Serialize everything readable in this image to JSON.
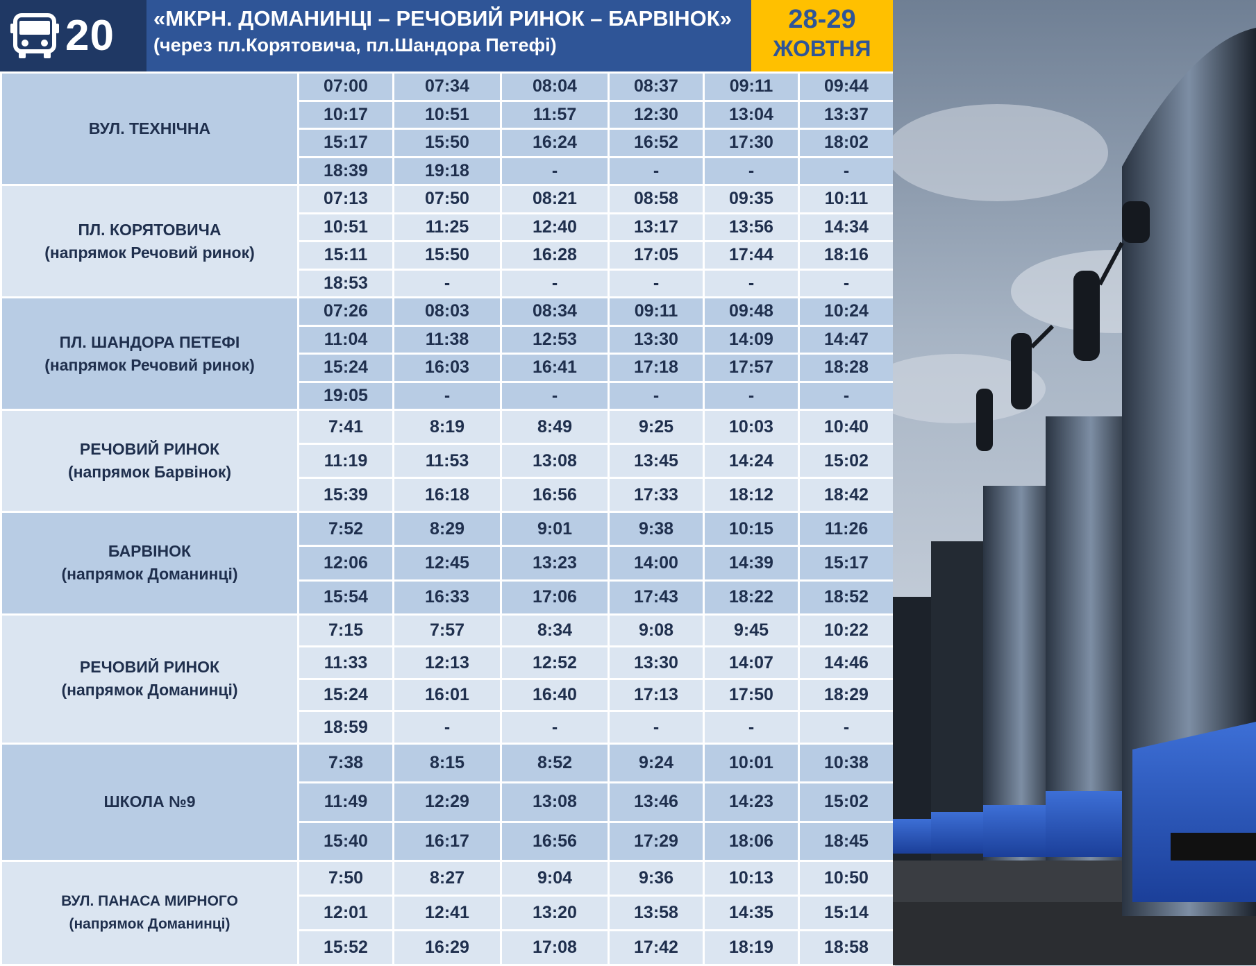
{
  "header": {
    "route_number": "20",
    "title": "«МКРН. ДОМАНИНЦІ – РЕЧОВИЙ РИНОК – БАРВІНОК»",
    "subtitle": "(через пл.Корятовича, пл.Шандора Петефі)",
    "date_days": "28-29",
    "date_month": "ЖОВТНЯ",
    "icon": "bus-icon"
  },
  "stops": [
    {
      "name": "ВУЛ. ТЕХНІЧНА",
      "direction": "",
      "rows": [
        [
          "07:00",
          "07:34",
          "08:04",
          "08:37",
          "09:11",
          "09:44"
        ],
        [
          "10:17",
          "10:51",
          "11:57",
          "12:30",
          "13:04",
          "13:37"
        ],
        [
          "15:17",
          "15:50",
          "16:24",
          "16:52",
          "17:30",
          "18:02"
        ],
        [
          "18:39",
          "19:18",
          "-",
          "-",
          "-",
          "-"
        ]
      ]
    },
    {
      "name": "ПЛ. КОРЯТОВИЧА",
      "direction": "(напрямок Речовий ринок)",
      "rows": [
        [
          "07:13",
          "07:50",
          "08:21",
          "08:58",
          "09:35",
          "10:11"
        ],
        [
          "10:51",
          "11:25",
          "12:40",
          "13:17",
          "13:56",
          "14:34"
        ],
        [
          "15:11",
          "15:50",
          "16:28",
          "17:05",
          "17:44",
          "18:16"
        ],
        [
          "18:53",
          "-",
          "-",
          "-",
          "-",
          "-"
        ]
      ]
    },
    {
      "name": "ПЛ. ШАНДОРА ПЕТЕФІ",
      "direction": "(напрямок Речовий ринок)",
      "rows": [
        [
          "07:26",
          "08:03",
          "08:34",
          "09:11",
          "09:48",
          "10:24"
        ],
        [
          "11:04",
          "11:38",
          "12:53",
          "13:30",
          "14:09",
          "14:47"
        ],
        [
          "15:24",
          "16:03",
          "16:41",
          "17:18",
          "17:57",
          "18:28"
        ],
        [
          "19:05",
          "-",
          "-",
          "-",
          "-",
          "-"
        ]
      ]
    },
    {
      "name": "РЕЧОВИЙ РИНОК",
      "direction": "(напрямок Барвінок)",
      "rows": [
        [
          "7:41",
          "8:19",
          "8:49",
          "9:25",
          "10:03",
          "10:40"
        ],
        [
          "11:19",
          "11:53",
          "13:08",
          "13:45",
          "14:24",
          "15:02"
        ],
        [
          "15:39",
          "16:18",
          "16:56",
          "17:33",
          "18:12",
          "18:42"
        ]
      ]
    },
    {
      "name": "БАРВІНОК",
      "direction": "(напрямок Доманинці)",
      "rows": [
        [
          "7:52",
          "8:29",
          "9:01",
          "9:38",
          "10:15",
          "11:26"
        ],
        [
          "12:06",
          "12:45",
          "13:23",
          "14:00",
          "14:39",
          "15:17"
        ],
        [
          "15:54",
          "16:33",
          "17:06",
          "17:43",
          "18:22",
          "18:52"
        ]
      ]
    },
    {
      "name": "РЕЧОВИЙ РИНОК",
      "direction": "(напрямок Доманинці)",
      "rows": [
        [
          "7:15",
          "7:57",
          "8:34",
          "9:08",
          "9:45",
          "10:22"
        ],
        [
          "11:33",
          "12:13",
          "12:52",
          "13:30",
          "14:07",
          "14:46"
        ],
        [
          "15:24",
          "16:01",
          "16:40",
          "17:13",
          "17:50",
          "18:29"
        ],
        [
          "18:59",
          "-",
          "-",
          "-",
          "-",
          "-"
        ]
      ]
    },
    {
      "name": "ШКОЛА №9",
      "direction": "",
      "rows": [
        [
          "7:38",
          "8:15",
          "8:52",
          "9:24",
          "10:01",
          "10:38"
        ],
        [
          "11:49",
          "12:29",
          "13:08",
          "13:46",
          "14:23",
          "15:02"
        ],
        [
          "15:40",
          "16:17",
          "16:56",
          "17:29",
          "18:06",
          "18:45"
        ]
      ]
    },
    {
      "name": "ВУЛ. ПАНАСА МИРНОГО",
      "direction": "(напрямок  Доманинці)",
      "rows": [
        [
          "7:50",
          "8:27",
          "9:04",
          "9:36",
          "10:13",
          "10:50"
        ],
        [
          "12:01",
          "12:41",
          "13:20",
          "13:58",
          "14:35",
          "15:14"
        ],
        [
          "15:52",
          "16:29",
          "17:08",
          "17:42",
          "18:19",
          "18:58"
        ]
      ]
    }
  ],
  "colors": {
    "header_dark": "#1f3864",
    "header_blue": "#2f5597",
    "date_yellow": "#ffc000",
    "row_dark": "#b8cce4",
    "row_light": "#dbe5f1"
  }
}
